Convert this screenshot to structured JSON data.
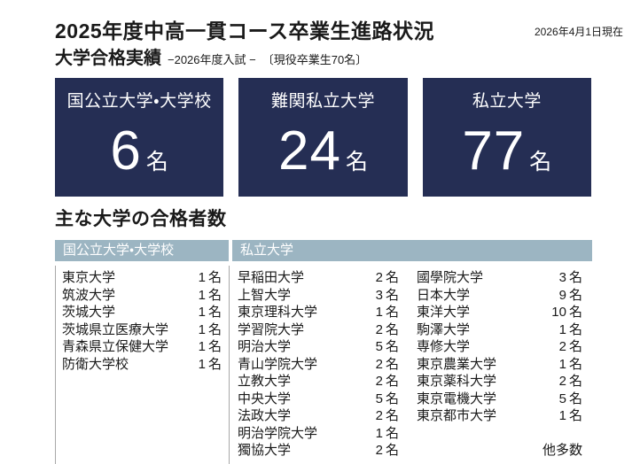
{
  "header": {
    "title": "2025年度中高一貫コース卒業生進路状況",
    "date_note": "2026年4月1日現在",
    "subtitle": "大学合格実績",
    "subtitle_note": "−2026年度入試 −",
    "cohort_note": "〔現役卒業生70名〕"
  },
  "summary_boxes": [
    {
      "label": "国公立大学・大学校",
      "count": "6",
      "unit": "名"
    },
    {
      "label": "難関私立大学",
      "count": "24",
      "unit": "名"
    },
    {
      "label": "私立大学",
      "count": "77",
      "unit": "名"
    }
  ],
  "results": {
    "heading": "主な大学の合格者数",
    "table": {
      "headers": [
        "国公立大学・大学校",
        "私立大学"
      ],
      "unit": "名",
      "national_public": [
        {
          "name": "東京大学",
          "count": "1"
        },
        {
          "name": "筑波大学",
          "count": "1"
        },
        {
          "name": "茨城大学",
          "count": "1"
        },
        {
          "name": "茨城県立医療大学",
          "count": "1"
        },
        {
          "name": "青森県立保健大学",
          "count": "1"
        },
        {
          "name": "防衛大学校",
          "count": "1"
        }
      ],
      "private_col1": [
        {
          "name": "早稲田大学",
          "count": "2"
        },
        {
          "name": "上智大学",
          "count": "3"
        },
        {
          "name": "東京理科大学",
          "count": "1"
        },
        {
          "name": "学習院大学",
          "count": "2"
        },
        {
          "name": "明治大学",
          "count": "5"
        },
        {
          "name": "青山学院大学",
          "count": "2"
        },
        {
          "name": "立教大学",
          "count": "2"
        },
        {
          "name": "中央大学",
          "count": "5"
        },
        {
          "name": "法政大学",
          "count": "2"
        },
        {
          "name": "明治学院大学",
          "count": "1"
        },
        {
          "name": "獨協大学",
          "count": "2"
        }
      ],
      "private_col2": [
        {
          "name": "國學院大学",
          "count": "3"
        },
        {
          "name": "日本大学",
          "count": "9"
        },
        {
          "name": "東洋大学",
          "count": "10"
        },
        {
          "name": "駒澤大学",
          "count": "1"
        },
        {
          "name": "専修大学",
          "count": "2"
        },
        {
          "name": "東京農業大学",
          "count": "1"
        },
        {
          "name": "東京薬科大学",
          "count": "2"
        },
        {
          "name": "東京電機大学",
          "count": "5"
        },
        {
          "name": "東京都市大学",
          "count": "1"
        }
      ],
      "more_note": "他多数"
    }
  },
  "colors": {
    "navy": "#252e54",
    "header_blue": "#9cb5c2",
    "text": "#1a1a1a",
    "border": "#a9a9a9"
  }
}
